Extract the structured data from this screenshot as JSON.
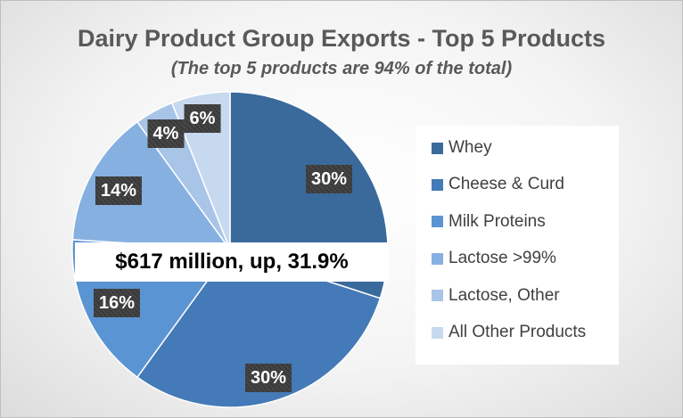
{
  "chart_data": {
    "type": "pie",
    "title": "Dairy Product Group Exports - Top 5 Products",
    "subtitle": "(The top 5 products are 94% of the total)",
    "annotation": "$617 million, up, 31.9%",
    "slices": [
      {
        "name": "Whey",
        "value": 30,
        "label": "30%",
        "color": "#3a6a9c"
      },
      {
        "name": "Cheese & Curd",
        "value": 30,
        "label": "30%",
        "color": "#447ab7"
      },
      {
        "name": "Milk Proteins",
        "value": 16,
        "label": "16%",
        "color": "#5b94d3"
      },
      {
        "name": "Lactose >99%",
        "value": 14,
        "label": "14%",
        "color": "#86b0e0"
      },
      {
        "name": "Lactose, Other",
        "value": 4,
        "label": "4%",
        "color": "#a8c5e8"
      },
      {
        "name": "All Other Products",
        "value": 6,
        "label": "6%",
        "color": "#c7d9ef"
      }
    ],
    "legend_position": "right"
  }
}
